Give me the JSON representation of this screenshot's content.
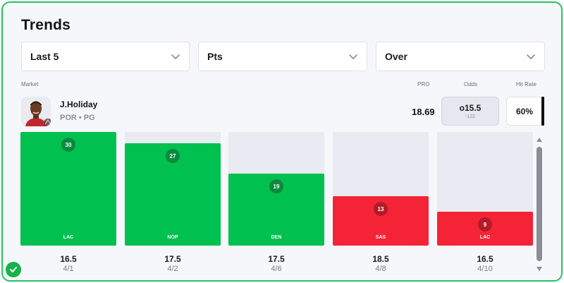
{
  "header": {
    "title": "Trends"
  },
  "filters": [
    {
      "label": "Last 5"
    },
    {
      "label": "Pts"
    },
    {
      "label": "Over"
    }
  ],
  "columns": {
    "market": "Market",
    "pro": "PRO",
    "odds": "Odds",
    "hit_rate": "Hit Rate"
  },
  "player": {
    "name": "J.Holiday",
    "team_position": "POR • PG",
    "pro": "18.69",
    "odds_line": "o15.5",
    "odds_price": "-122",
    "hit_rate": "60%"
  },
  "chart_data": {
    "type": "bar",
    "categories": [
      "4/1",
      "4/2",
      "4/6",
      "4/8",
      "4/10"
    ],
    "values": [
      30,
      27,
      19,
      13,
      9
    ],
    "lines": [
      16.5,
      17.5,
      17.5,
      18.5,
      16.5
    ],
    "lines_text": [
      "16.5",
      "17.5",
      "17.5",
      "18.5",
      "16.5"
    ],
    "opponents": [
      "LAC",
      "NOP",
      "DEN",
      "SAS",
      "LAC"
    ],
    "outcomes": [
      "over",
      "over",
      "over",
      "under",
      "under"
    ],
    "ylim": [
      0,
      30
    ],
    "colors": {
      "over": "#00c04f",
      "under": "#f42436",
      "empty": "#e9eaf2"
    }
  },
  "status": {
    "icon": "check-circle-icon",
    "accent": "#22c55e"
  }
}
